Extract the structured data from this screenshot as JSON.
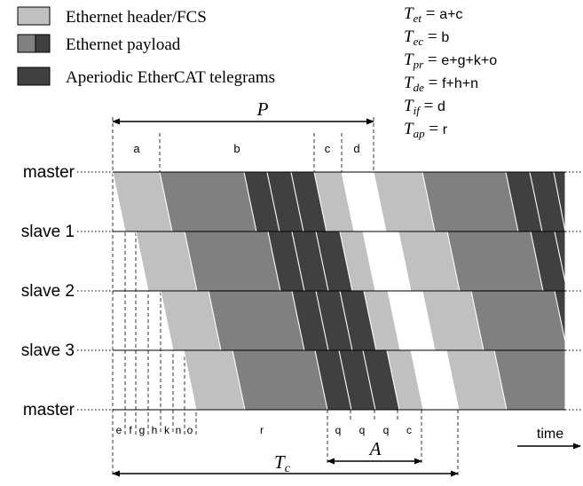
{
  "legend": {
    "items": [
      {
        "label": "Ethernet header/FCS",
        "swatch": "header"
      },
      {
        "label": "Ethernet payload",
        "swatch": "payload"
      },
      {
        "label": "Aperiodic EtherCAT telegrams",
        "swatch": "aperiodic"
      }
    ]
  },
  "formulas": [
    {
      "symbol": "T",
      "sub": "et",
      "value": "a+c"
    },
    {
      "symbol": "T",
      "sub": "ec",
      "value": "b"
    },
    {
      "symbol": "T",
      "sub": "pr",
      "value": "e+g+k+o"
    },
    {
      "symbol": "T",
      "sub": "de",
      "value": "f+h+n"
    },
    {
      "symbol": "T",
      "sub": "if",
      "value": "d"
    },
    {
      "symbol": "T",
      "sub": "ap",
      "value": "r"
    }
  ],
  "nodes": [
    "master",
    "slave 1",
    "slave 2",
    "slave 3",
    "master"
  ],
  "period": {
    "label": "P"
  },
  "cycle": {
    "symbol": "T",
    "sub": "c"
  },
  "aperiodic_window": {
    "label": "A"
  },
  "top_segments": [
    "a",
    "b",
    "c",
    "d"
  ],
  "bottom_segments": [
    "e",
    "f",
    "g",
    "h",
    "k",
    "n",
    "o",
    "r",
    "q",
    "q",
    "q",
    "c"
  ],
  "time_label": "time",
  "colors": {
    "header": "#c0c0c0",
    "payload": "#808080",
    "aperiodic": "#404040",
    "line": "#000000"
  }
}
